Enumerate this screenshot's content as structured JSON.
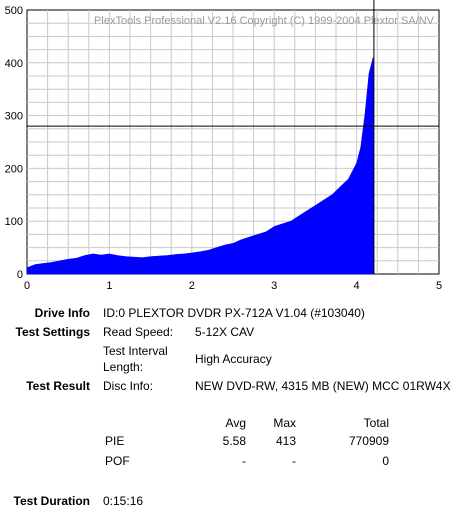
{
  "chart_data": {
    "type": "bar",
    "watermark": "PlexTools Professional V2.16 Copyright (C) 1999-2004 Plextor SA/NV",
    "xlim": [
      0,
      5
    ],
    "ylim": [
      0,
      500
    ],
    "xticks": [
      "0",
      "1",
      "2",
      "3",
      "4",
      "5"
    ],
    "yticks": [
      "0",
      "100",
      "200",
      "300",
      "400",
      "500"
    ],
    "grid": true,
    "cursor": {
      "x": 4.21,
      "y": 280
    },
    "series": [
      {
        "color": "#0000ff",
        "x": [
          0.0,
          0.1,
          0.2,
          0.3,
          0.4,
          0.5,
          0.6,
          0.7,
          0.8,
          0.9,
          1.0,
          1.1,
          1.2,
          1.3,
          1.4,
          1.5,
          1.6,
          1.7,
          1.8,
          1.9,
          2.0,
          2.1,
          2.2,
          2.3,
          2.4,
          2.5,
          2.6,
          2.7,
          2.8,
          2.9,
          3.0,
          3.1,
          3.2,
          3.3,
          3.4,
          3.5,
          3.6,
          3.7,
          3.8,
          3.9,
          4.0,
          4.05,
          4.1,
          4.15,
          4.2,
          4.21
        ],
        "values": [
          12,
          18,
          20,
          22,
          25,
          28,
          30,
          35,
          38,
          36,
          38,
          35,
          33,
          32,
          31,
          33,
          34,
          35,
          37,
          38,
          40,
          42,
          45,
          50,
          55,
          58,
          65,
          70,
          75,
          80,
          90,
          95,
          100,
          110,
          120,
          130,
          140,
          150,
          165,
          180,
          210,
          240,
          300,
          380,
          410,
          0
        ]
      }
    ]
  },
  "info": {
    "drive_label": "Drive Info",
    "drive_value": "ID:0 PLEXTOR DVDR PX-712A V1.04 (#103040)",
    "settings_label": "Test Settings",
    "read_speed_key": "Read Speed:",
    "read_speed_value": "5-12X CAV",
    "interval_key_1": "Test Interval",
    "interval_key_2": "Length:",
    "interval_value": "High Accuracy",
    "result_label": "Test Result",
    "disc_info_key": "Disc Info:",
    "disc_info_value": "NEW DVD-RW, 4315 MB (NEW) MCC 01RW4X",
    "duration_label": "Test Duration",
    "duration_value": "0:15:16"
  },
  "stats": {
    "col_avg": "Avg",
    "col_max": "Max",
    "col_total": "Total",
    "rows": [
      {
        "name": "PIE",
        "avg": "5.58",
        "max": "413",
        "total": "770909"
      },
      {
        "name": "POF",
        "avg": "-",
        "max": "-",
        "total": "0"
      }
    ]
  }
}
